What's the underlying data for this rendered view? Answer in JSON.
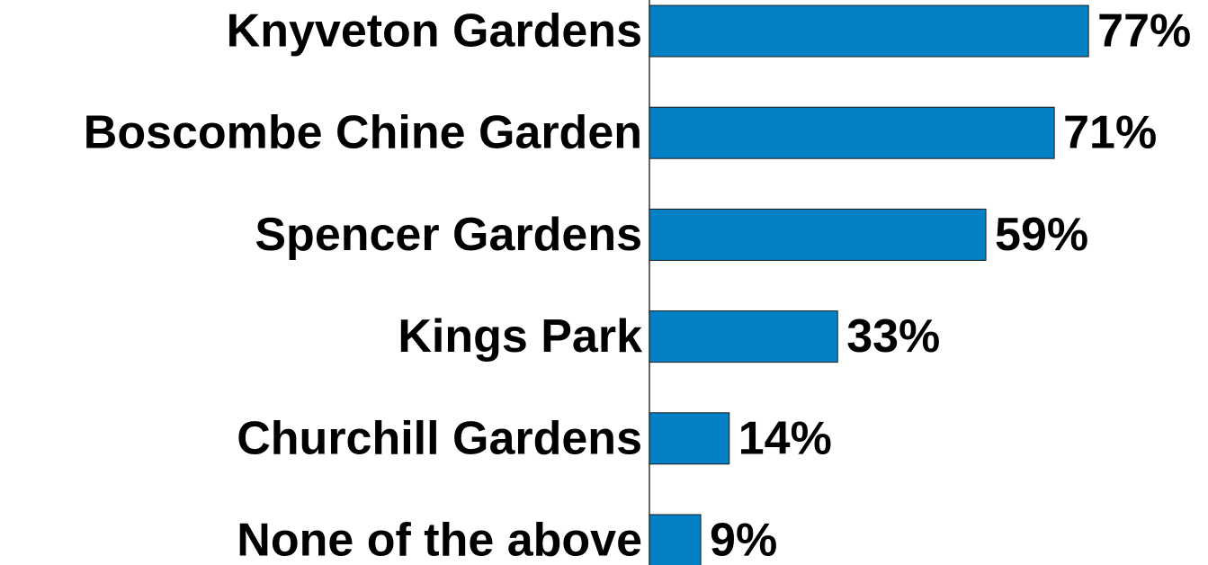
{
  "chart_data": {
    "type": "bar",
    "orientation": "horizontal",
    "title": "",
    "xlabel": "",
    "ylabel": "",
    "categories": [
      "Knyveton Gardens",
      "Boscombe Chine Garden",
      "Spencer Gardens",
      "Kings Park",
      "Churchill Gardens",
      "None of the above"
    ],
    "values": [
      77,
      71,
      59,
      33,
      14,
      9
    ],
    "value_suffix": "%",
    "data_labels": [
      "77%",
      "71%",
      "59%",
      "33%",
      "14%",
      "9%"
    ],
    "xlim": [
      0,
      100
    ],
    "grid": false,
    "legend": "none",
    "colors": {
      "bar": "#0481C6",
      "bar_stroke": "#1a1a1a",
      "axis": "#333333",
      "text": "#000000"
    }
  }
}
